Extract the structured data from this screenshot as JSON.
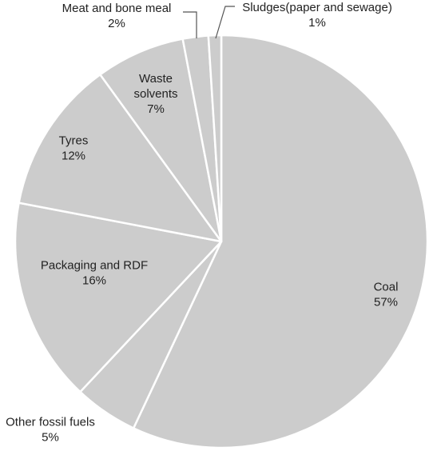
{
  "chart_data": {
    "type": "pie",
    "title": "",
    "start_angle_deg": 0,
    "direction": "clockwise",
    "slice_color": "#cccccc",
    "edge_color": "#ffffff",
    "slices": [
      {
        "label": "Coal",
        "percent_label": "57%",
        "value": 57
      },
      {
        "label": "Other fossil fuels",
        "percent_label": "5%",
        "value": 5
      },
      {
        "label": "Packaging and RDF",
        "percent_label": "16%",
        "value": 16
      },
      {
        "label": "Tyres",
        "percent_label": "12%",
        "value": 12
      },
      {
        "label": "Waste solvents",
        "percent_label": "7%",
        "value": 7
      },
      {
        "label": "Meat and bone meal",
        "percent_label": "2%",
        "value": 2
      },
      {
        "label": "Sludges(paper and sewage)",
        "percent_label": "1%",
        "value": 1
      }
    ]
  }
}
